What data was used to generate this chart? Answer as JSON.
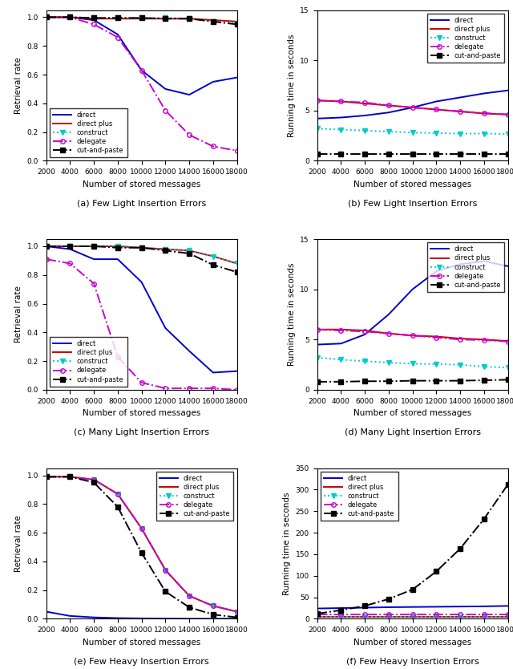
{
  "x": [
    2000,
    4000,
    6000,
    8000,
    10000,
    12000,
    14000,
    16000,
    18000
  ],
  "panel_a": {
    "title": "(a) Few Light Insertion Errors",
    "ylabel": "Retrieval rate",
    "xlabel": "Number of stored messages",
    "ylim": [
      0,
      1.05
    ],
    "yticks": [
      0,
      0.2,
      0.4,
      0.6,
      0.8,
      1.0
    ],
    "direct": [
      1.0,
      1.0,
      0.98,
      0.88,
      0.63,
      0.5,
      0.46,
      0.55,
      0.58
    ],
    "direct_plus": [
      1.0,
      1.0,
      0.99,
      0.99,
      0.99,
      0.99,
      0.99,
      0.98,
      0.97
    ],
    "construct": [
      1.0,
      1.0,
      0.995,
      0.995,
      0.995,
      0.995,
      0.99,
      0.97,
      0.96
    ],
    "delegate": [
      1.0,
      1.0,
      0.95,
      0.86,
      0.63,
      0.35,
      0.18,
      0.1,
      0.07
    ],
    "cut_paste": [
      1.0,
      1.0,
      0.995,
      0.995,
      0.995,
      0.99,
      0.99,
      0.97,
      0.95
    ]
  },
  "panel_b": {
    "title": "(b) Few Light Insertion Errors",
    "ylabel": "Running time in seconds",
    "xlabel": "Number of stored messages",
    "ylim": [
      0,
      15
    ],
    "yticks": [
      0,
      5,
      10,
      15
    ],
    "direct": [
      4.2,
      4.3,
      4.5,
      4.8,
      5.3,
      5.9,
      6.3,
      6.7,
      7.0
    ],
    "direct_plus": [
      6.0,
      5.9,
      5.7,
      5.5,
      5.3,
      5.1,
      4.9,
      4.7,
      4.6
    ],
    "construct": [
      3.2,
      3.1,
      3.0,
      2.9,
      2.8,
      2.75,
      2.7,
      2.7,
      2.65
    ],
    "delegate": [
      6.0,
      5.9,
      5.8,
      5.5,
      5.3,
      5.1,
      4.9,
      4.75,
      4.6
    ],
    "cut_paste": [
      0.7,
      0.7,
      0.7,
      0.7,
      0.7,
      0.7,
      0.7,
      0.7,
      0.7
    ]
  },
  "panel_c": {
    "title": "(c) Many Light Insertion Errors",
    "ylabel": "Retrieval rate",
    "xlabel": "Number of stored messages",
    "ylim": [
      0,
      1.05
    ],
    "yticks": [
      0,
      0.2,
      0.4,
      0.6,
      0.8,
      1.0
    ],
    "direct": [
      1.0,
      0.98,
      0.91,
      0.91,
      0.75,
      0.43,
      0.27,
      0.12,
      0.13
    ],
    "direct_plus": [
      1.0,
      1.0,
      1.0,
      1.0,
      0.99,
      0.98,
      0.97,
      0.93,
      0.88
    ],
    "construct": [
      1.0,
      1.0,
      1.0,
      1.0,
      0.99,
      0.98,
      0.97,
      0.93,
      0.88
    ],
    "delegate": [
      0.91,
      0.88,
      0.74,
      0.23,
      0.05,
      0.01,
      0.01,
      0.01,
      0.0
    ],
    "cut_paste": [
      1.0,
      1.0,
      1.0,
      0.99,
      0.99,
      0.97,
      0.95,
      0.87,
      0.82
    ]
  },
  "panel_d": {
    "title": "(d) Many Light Insertion Errors",
    "ylabel": "Running time in seconds",
    "xlabel": "Number of stored messages",
    "ylim": [
      0,
      15
    ],
    "yticks": [
      0,
      5,
      10,
      15
    ],
    "direct": [
      4.5,
      4.6,
      5.5,
      7.5,
      10.0,
      11.8,
      12.5,
      12.8,
      12.3
    ],
    "direct_plus": [
      6.0,
      6.0,
      5.9,
      5.6,
      5.4,
      5.3,
      5.1,
      5.0,
      4.85
    ],
    "construct": [
      3.2,
      3.0,
      2.85,
      2.7,
      2.6,
      2.55,
      2.5,
      2.3,
      2.2
    ],
    "delegate": [
      6.0,
      5.9,
      5.8,
      5.6,
      5.4,
      5.2,
      5.0,
      4.95,
      4.8
    ],
    "cut_paste": [
      0.8,
      0.8,
      0.85,
      0.85,
      0.9,
      0.9,
      0.9,
      0.95,
      1.0
    ]
  },
  "panel_e": {
    "title": "(e) Few Heavy Insertion Errors",
    "ylabel": "Retrieval rate",
    "xlabel": "Number of stored messages",
    "ylim": [
      0,
      1.05
    ],
    "yticks": [
      0,
      0.2,
      0.4,
      0.6,
      0.8,
      1.0
    ],
    "direct": [
      0.05,
      0.02,
      0.01,
      0.005,
      0.003,
      0.002,
      0.001,
      0.001,
      0.001
    ],
    "direct_plus": [
      0.99,
      0.99,
      0.97,
      0.87,
      0.63,
      0.34,
      0.16,
      0.09,
      0.05
    ],
    "construct": [
      0.99,
      0.99,
      0.97,
      0.87,
      0.63,
      0.34,
      0.16,
      0.09,
      0.05
    ],
    "delegate": [
      0.99,
      0.99,
      0.97,
      0.87,
      0.63,
      0.34,
      0.16,
      0.09,
      0.05
    ],
    "cut_paste": [
      0.99,
      0.99,
      0.95,
      0.78,
      0.46,
      0.19,
      0.08,
      0.03,
      0.01
    ]
  },
  "panel_f": {
    "title": "(f) Few Heavy Insertion Errors",
    "ylabel": "Running time in seconds",
    "xlabel": "Number of stored messages",
    "ylim": [
      0,
      350
    ],
    "yticks": [
      0,
      50,
      100,
      150,
      200,
      250,
      300,
      350
    ],
    "direct": [
      24.0,
      25.0,
      26.0,
      27.0,
      27.5,
      28.0,
      28.5,
      29.0,
      30.0
    ],
    "direct_plus": [
      5.0,
      5.0,
      5.0,
      5.0,
      5.0,
      5.0,
      5.0,
      5.0,
      5.0
    ],
    "construct": [
      5.0,
      5.0,
      5.0,
      5.0,
      5.0,
      5.0,
      5.0,
      5.0,
      5.0
    ],
    "delegate": [
      10.0,
      10.0,
      10.0,
      10.0,
      10.0,
      10.0,
      10.0,
      10.0,
      10.0
    ],
    "cut_paste": [
      12.0,
      20.0,
      30.0,
      46.0,
      68.0,
      110.0,
      163.0,
      232.0,
      312.0
    ]
  },
  "colors": {
    "direct": "#0000cc",
    "direct_plus": "#cc0000",
    "construct": "#00cccc",
    "delegate": "#cc00cc",
    "cut_paste": "#000000"
  },
  "legend_labels": [
    "direct",
    "direct plus",
    "construct",
    "delegate",
    "cut-and-paste"
  ],
  "figsize": [
    6.4,
    8.34
  ],
  "dpi": 100
}
